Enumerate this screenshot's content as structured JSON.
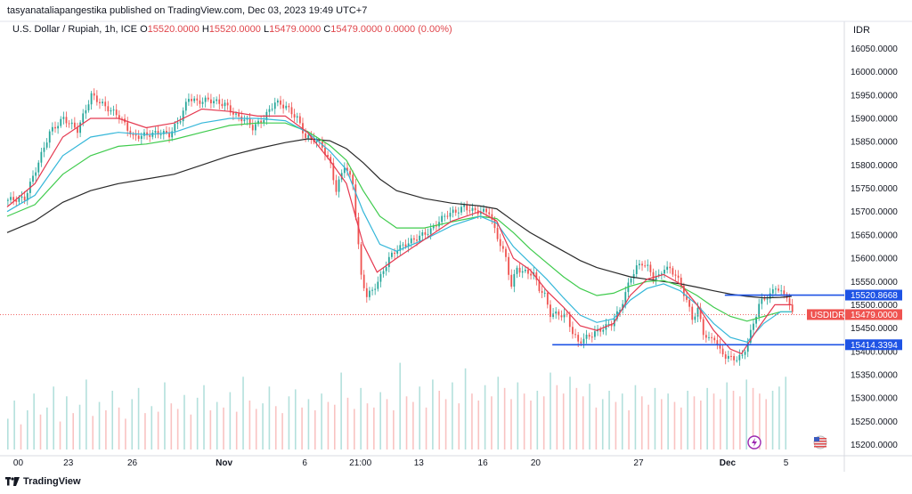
{
  "header": {
    "publish_line": "tasyanataliapangestika published on TradingView.com, Dec 03, 2023 19:49 UTC+7"
  },
  "symbol": {
    "name": "U.S. Dollar / Rupiah, 1h, ICE",
    "o_label": "O",
    "o_value": "15520.0000",
    "h_label": "H",
    "h_value": "15520.0000",
    "l_label": "L",
    "l_value": "15479.0000",
    "c_label": "C",
    "c_value": "15479.0000",
    "change": "0.0000 (0.00%)"
  },
  "currency": "IDR",
  "footer": {
    "brand": "TradingView"
  },
  "colors": {
    "up": "#26a69a",
    "down": "#ef5350",
    "ema_fast": "#e53950",
    "ema_mid": "#35b7d9",
    "ema_slow": "#3fcb4d",
    "ema_long": "#2a2a2a",
    "level": "#1e53e5",
    "last_price": "#ef5350"
  },
  "chart_data": {
    "type": "candlestick",
    "ylim": [
      15180,
      16070
    ],
    "y_ticks": [
      "16050.0000",
      "16000.0000",
      "15950.0000",
      "15900.0000",
      "15850.0000",
      "15800.0000",
      "15750.0000",
      "15700.0000",
      "15650.0000",
      "15600.0000",
      "15550.0000",
      "15500.0000",
      "15450.0000",
      "15400.0000",
      "15350.0000",
      "15300.0000",
      "15250.0000",
      "15200.0000"
    ],
    "x_ticks": [
      "00",
      "23",
      "26",
      "Nov",
      "6",
      "21:00",
      "13",
      "16",
      "20",
      "27",
      "Dec",
      "5"
    ],
    "price_path": [
      [
        0,
        15725
      ],
      [
        6,
        15728
      ],
      [
        10,
        15790
      ],
      [
        15,
        15870
      ],
      [
        20,
        15900
      ],
      [
        25,
        15875
      ],
      [
        30,
        15950
      ],
      [
        35,
        15925
      ],
      [
        40,
        15905
      ],
      [
        45,
        15860
      ],
      [
        50,
        15865
      ],
      [
        55,
        15870
      ],
      [
        58,
        15865
      ],
      [
        62,
        15900
      ],
      [
        65,
        15945
      ],
      [
        68,
        15935
      ],
      [
        72,
        15940
      ],
      [
        78,
        15930
      ],
      [
        82,
        15905
      ],
      [
        86,
        15895
      ],
      [
        88,
        15880
      ],
      [
        92,
        15900
      ],
      [
        96,
        15935
      ],
      [
        100,
        15925
      ],
      [
        104,
        15900
      ],
      [
        107,
        15860
      ],
      [
        110,
        15855
      ],
      [
        113,
        15840
      ],
      [
        116,
        15800
      ],
      [
        118,
        15745
      ],
      [
        121,
        15800
      ],
      [
        124,
        15760
      ],
      [
        127,
        15560
      ],
      [
        129,
        15520
      ],
      [
        131,
        15530
      ],
      [
        134,
        15560
      ],
      [
        137,
        15600
      ],
      [
        140,
        15620
      ],
      [
        143,
        15630
      ],
      [
        146,
        15640
      ],
      [
        149,
        15650
      ],
      [
        152,
        15660
      ],
      [
        155,
        15680
      ],
      [
        158,
        15695
      ],
      [
        161,
        15700
      ],
      [
        164,
        15710
      ],
      [
        167,
        15702
      ],
      [
        170,
        15700
      ],
      [
        173,
        15700
      ],
      [
        175,
        15660
      ],
      [
        177,
        15630
      ],
      [
        179,
        15600
      ],
      [
        181,
        15540
      ],
      [
        183,
        15580
      ],
      [
        185,
        15570
      ],
      [
        187,
        15570
      ],
      [
        189,
        15565
      ],
      [
        191,
        15535
      ],
      [
        193,
        15520
      ],
      [
        195,
        15480
      ],
      [
        198,
        15480
      ],
      [
        201,
        15475
      ],
      [
        203,
        15440
      ],
      [
        205,
        15420
      ],
      [
        208,
        15430
      ],
      [
        211,
        15440
      ],
      [
        214,
        15450
      ],
      [
        217,
        15460
      ],
      [
        220,
        15490
      ],
      [
        222,
        15525
      ],
      [
        224,
        15560
      ],
      [
        226,
        15580
      ],
      [
        228,
        15590
      ],
      [
        230,
        15580
      ],
      [
        232,
        15560
      ],
      [
        234,
        15560
      ],
      [
        236,
        15580
      ],
      [
        238,
        15575
      ],
      [
        240,
        15565
      ],
      [
        242,
        15540
      ],
      [
        244,
        15510
      ],
      [
        246,
        15470
      ],
      [
        248,
        15490
      ],
      [
        250,
        15440
      ],
      [
        252,
        15425
      ],
      [
        254,
        15430
      ],
      [
        256,
        15400
      ],
      [
        258,
        15390
      ],
      [
        260,
        15385
      ],
      [
        262,
        15385
      ],
      [
        264,
        15390
      ],
      [
        266,
        15420
      ],
      [
        268,
        15460
      ],
      [
        270,
        15500
      ],
      [
        272,
        15515
      ],
      [
        274,
        15520
      ],
      [
        276,
        15540
      ],
      [
        278,
        15525
      ],
      [
        280,
        15520
      ],
      [
        282,
        15479
      ]
    ],
    "volume": [
      22,
      35,
      18,
      28,
      40,
      25,
      30,
      45,
      20,
      38,
      26,
      32,
      50,
      24,
      34,
      28,
      42,
      30,
      22,
      36,
      44,
      26,
      31,
      27,
      48,
      33,
      29,
      39,
      25,
      37,
      46,
      28,
      34,
      30,
      41,
      27,
      52,
      35,
      29,
      33,
      45,
      31,
      26,
      38,
      43,
      30,
      36,
      28,
      40,
      34,
      32,
      55,
      37,
      29,
      44,
      33,
      30,
      41,
      36,
      28,
      62,
      38,
      34,
      45,
      30,
      50,
      42,
      36,
      48,
      33,
      58,
      40,
      35,
      46,
      38,
      52,
      44,
      36,
      48,
      40,
      35,
      42,
      38,
      55,
      46,
      40,
      52,
      44,
      38,
      47,
      30,
      36,
      42,
      34,
      40,
      28,
      46,
      38,
      32,
      44,
      36,
      40,
      34,
      30,
      42,
      38,
      35,
      44,
      40,
      36,
      48,
      42,
      38,
      50,
      44,
      40,
      36,
      42,
      45,
      52
    ],
    "ema_fast": [
      [
        0,
        15710
      ],
      [
        10,
        15760
      ],
      [
        20,
        15860
      ],
      [
        30,
        15900
      ],
      [
        40,
        15900
      ],
      [
        50,
        15880
      ],
      [
        60,
        15890
      ],
      [
        70,
        15920
      ],
      [
        80,
        15915
      ],
      [
        90,
        15905
      ],
      [
        100,
        15905
      ],
      [
        108,
        15870
      ],
      [
        116,
        15810
      ],
      [
        122,
        15760
      ],
      [
        128,
        15630
      ],
      [
        133,
        15570
      ],
      [
        140,
        15600
      ],
      [
        150,
        15640
      ],
      [
        160,
        15680
      ],
      [
        170,
        15700
      ],
      [
        176,
        15680
      ],
      [
        182,
        15600
      ],
      [
        188,
        15575
      ],
      [
        194,
        15530
      ],
      [
        200,
        15495
      ],
      [
        206,
        15455
      ],
      [
        212,
        15445
      ],
      [
        218,
        15460
      ],
      [
        224,
        15520
      ],
      [
        230,
        15555
      ],
      [
        236,
        15565
      ],
      [
        242,
        15545
      ],
      [
        248,
        15500
      ],
      [
        254,
        15445
      ],
      [
        260,
        15405
      ],
      [
        264,
        15395
      ],
      [
        270,
        15450
      ],
      [
        276,
        15500
      ],
      [
        282,
        15500
      ]
    ],
    "ema_mid": [
      [
        0,
        15700
      ],
      [
        10,
        15735
      ],
      [
        20,
        15820
      ],
      [
        30,
        15860
      ],
      [
        40,
        15870
      ],
      [
        50,
        15865
      ],
      [
        60,
        15870
      ],
      [
        70,
        15890
      ],
      [
        80,
        15900
      ],
      [
        90,
        15900
      ],
      [
        100,
        15895
      ],
      [
        108,
        15870
      ],
      [
        116,
        15830
      ],
      [
        122,
        15790
      ],
      [
        128,
        15700
      ],
      [
        134,
        15630
      ],
      [
        140,
        15615
      ],
      [
        150,
        15640
      ],
      [
        160,
        15670
      ],
      [
        170,
        15690
      ],
      [
        176,
        15675
      ],
      [
        182,
        15625
      ],
      [
        188,
        15590
      ],
      [
        194,
        15555
      ],
      [
        200,
        15515
      ],
      [
        206,
        15478
      ],
      [
        212,
        15462
      ],
      [
        218,
        15470
      ],
      [
        224,
        15510
      ],
      [
        230,
        15535
      ],
      [
        236,
        15545
      ],
      [
        242,
        15530
      ],
      [
        248,
        15500
      ],
      [
        254,
        15460
      ],
      [
        260,
        15430
      ],
      [
        266,
        15420
      ],
      [
        272,
        15460
      ],
      [
        278,
        15485
      ],
      [
        282,
        15485
      ]
    ],
    "ema_slow": [
      [
        0,
        15690
      ],
      [
        10,
        15715
      ],
      [
        20,
        15780
      ],
      [
        30,
        15820
      ],
      [
        40,
        15840
      ],
      [
        50,
        15845
      ],
      [
        60,
        15855
      ],
      [
        70,
        15870
      ],
      [
        80,
        15885
      ],
      [
        90,
        15890
      ],
      [
        100,
        15890
      ],
      [
        108,
        15872
      ],
      [
        116,
        15842
      ],
      [
        122,
        15810
      ],
      [
        128,
        15745
      ],
      [
        134,
        15690
      ],
      [
        140,
        15665
      ],
      [
        150,
        15665
      ],
      [
        160,
        15678
      ],
      [
        170,
        15690
      ],
      [
        176,
        15685
      ],
      [
        182,
        15655
      ],
      [
        188,
        15620
      ],
      [
        194,
        15590
      ],
      [
        200,
        15560
      ],
      [
        206,
        15535
      ],
      [
        212,
        15520
      ],
      [
        218,
        15525
      ],
      [
        224,
        15540
      ],
      [
        230,
        15550
      ],
      [
        236,
        15552
      ],
      [
        242,
        15540
      ],
      [
        248,
        15520
      ],
      [
        254,
        15495
      ],
      [
        260,
        15475
      ],
      [
        266,
        15465
      ],
      [
        272,
        15475
      ],
      [
        278,
        15485
      ],
      [
        282,
        15485
      ]
    ],
    "ema_long": [
      [
        0,
        15655
      ],
      [
        10,
        15680
      ],
      [
        20,
        15720
      ],
      [
        30,
        15745
      ],
      [
        40,
        15760
      ],
      [
        50,
        15770
      ],
      [
        60,
        15780
      ],
      [
        70,
        15800
      ],
      [
        80,
        15820
      ],
      [
        90,
        15835
      ],
      [
        100,
        15848
      ],
      [
        108,
        15856
      ],
      [
        116,
        15852
      ],
      [
        122,
        15835
      ],
      [
        128,
        15805
      ],
      [
        134,
        15770
      ],
      [
        140,
        15745
      ],
      [
        150,
        15728
      ],
      [
        160,
        15718
      ],
      [
        170,
        15712
      ],
      [
        176,
        15706
      ],
      [
        182,
        15680
      ],
      [
        188,
        15655
      ],
      [
        194,
        15635
      ],
      [
        200,
        15615
      ],
      [
        206,
        15595
      ],
      [
        212,
        15580
      ],
      [
        218,
        15570
      ],
      [
        224,
        15560
      ],
      [
        230,
        15555
      ],
      [
        236,
        15550
      ],
      [
        242,
        15545
      ],
      [
        248,
        15538
      ],
      [
        254,
        15530
      ],
      [
        260,
        15523
      ],
      [
        266,
        15518
      ],
      [
        272,
        15515
      ],
      [
        278,
        15516
      ],
      [
        282,
        15518
      ]
    ],
    "levels": [
      {
        "value": 15520.8668,
        "label": "15520.8668"
      },
      {
        "value": 15414.3394,
        "label": "15414.3394"
      }
    ],
    "last_price": {
      "value": 15479.0,
      "label": "15479.0000",
      "symbol": "USDIDR"
    }
  }
}
